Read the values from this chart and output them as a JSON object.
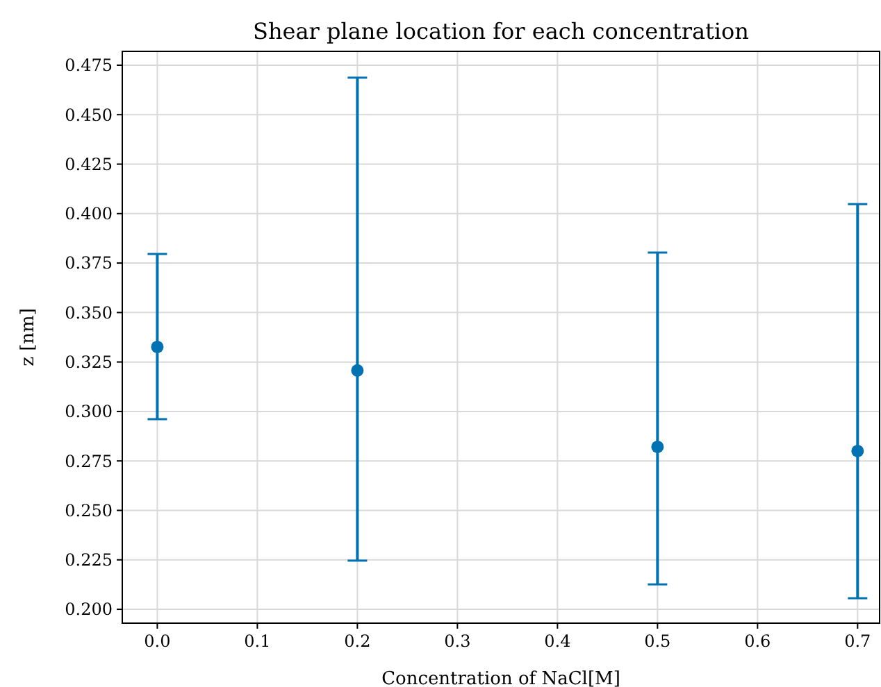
{
  "chart_data": {
    "type": "scatter",
    "title": "Shear plane location for each concentration",
    "xlabel": "Concentration of NaCl[M]",
    "ylabel": "z [nm]",
    "x": [
      0.0,
      0.2,
      0.5,
      0.7
    ],
    "series": [
      {
        "color": "#0072b2",
        "values": [
          0.3326,
          0.3207,
          0.2821,
          0.28
        ],
        "errors": [
          [
            0.2961,
            0.3796
          ],
          [
            0.2246,
            0.4687
          ],
          [
            0.2126,
            0.3803
          ],
          [
            0.2056,
            0.4048
          ]
        ]
      }
    ],
    "xlim": [
      -0.035,
      0.722
    ],
    "ylim": [
      0.193,
      0.482
    ],
    "xticks": [
      {
        "value": 0,
        "label": "0.0"
      },
      0.1,
      0.2,
      0.3,
      0.4,
      0.5,
      0.6,
      0.7
    ],
    "yticks": [
      {
        "value": 0.2,
        "label": "0.200"
      },
      0.225,
      {
        "value": 0.25,
        "label": "0.250"
      },
      0.275,
      {
        "value": 0.3,
        "label": "0.300"
      },
      0.325,
      {
        "value": 0.35,
        "label": "0.350"
      },
      0.375,
      {
        "value": 0.4,
        "label": "0.400"
      },
      0.425,
      {
        "value": 0.45,
        "label": "0.450"
      },
      0.475
    ],
    "grid": true,
    "marker": "circle"
  }
}
